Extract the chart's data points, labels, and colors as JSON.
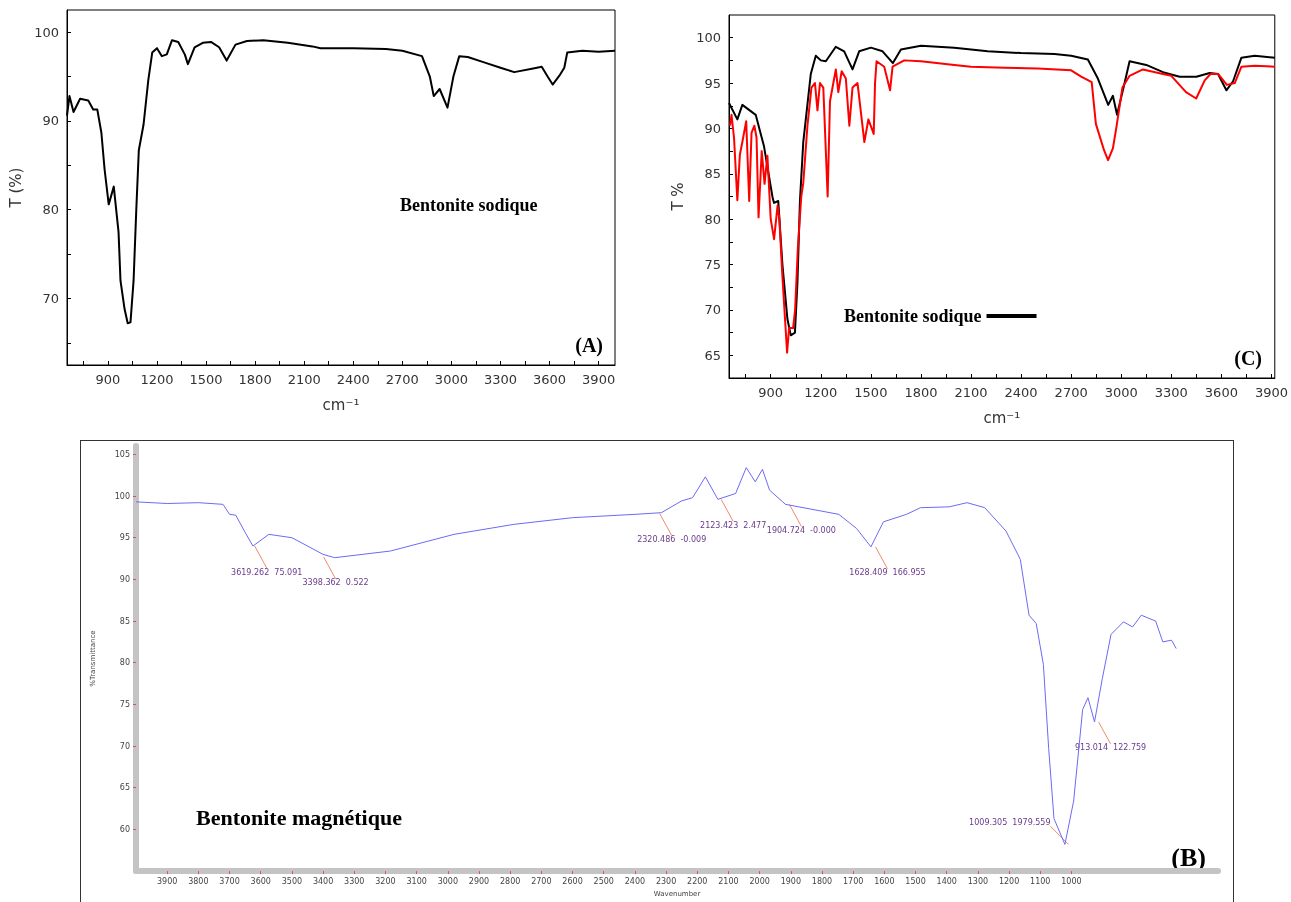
{
  "chart_data": [
    {
      "type": "line",
      "xlabel": "cm⁻¹",
      "ylabel": "T (%)",
      "xlim": [
        650,
        4000
      ],
      "ylim": [
        62.5,
        102.5
      ],
      "xticks": [
        {
          "value": 750,
          "label": null
        },
        900,
        {
          "value": 1050,
          "label": null
        },
        1200,
        {
          "value": 1350,
          "label": null
        },
        1500,
        {
          "value": 1650,
          "label": null
        },
        1800,
        {
          "value": 1950,
          "label": null
        },
        2100,
        {
          "value": 2250,
          "label": null
        },
        2400,
        {
          "value": 2550,
          "label": null
        },
        2700,
        {
          "value": 2850,
          "label": null
        },
        3000,
        {
          "value": 3150,
          "label": null
        },
        3300,
        {
          "value": 3450,
          "label": null
        },
        3600,
        {
          "value": 3750,
          "label": null
        },
        3900
      ],
      "yticks": [
        {
          "value": 65,
          "label": null
        },
        70,
        {
          "value": 75,
          "label": null
        },
        80,
        {
          "value": 85,
          "label": null
        },
        90,
        {
          "value": 95,
          "label": null
        },
        100
      ],
      "grid": false,
      "legend": false,
      "marker": "none",
      "line_style": "solid",
      "annotations": [
        "Bentonite sodique",
        "(A)"
      ],
      "series": [
        {
          "color": "#000000",
          "x": [
            650,
            665,
            690,
            730,
            780,
            810,
            835,
            860,
            880,
            905,
            936,
            945,
            965,
            977,
            1002,
            1021,
            1038,
            1057,
            1074,
            1089,
            1118,
            1147,
            1171,
            1200,
            1230,
            1260,
            1292,
            1330,
            1370,
            1389,
            1430,
            1480,
            1530,
            1580,
            1626,
            1680,
            1750,
            1850,
            2000,
            2150,
            2200,
            2400,
            2600,
            2700,
            2820,
            2868,
            2892,
            2928,
            2976,
            3012,
            3048,
            3100,
            3200,
            3300,
            3384,
            3500,
            3552,
            3588,
            3619,
            3660,
            3690,
            3708,
            3800,
            3900,
            4000
          ],
          "values": [
            90.6,
            92.8,
            91,
            92.5,
            92.3,
            91.3,
            91.3,
            88.7,
            84.5,
            80.6,
            82.6,
            81,
            77.5,
            72,
            68.8,
            67.2,
            67.3,
            72,
            80.2,
            86.7,
            89.6,
            94.6,
            97.7,
            98.2,
            97.3,
            97.5,
            99.1,
            98.9,
            97.5,
            96.4,
            98.3,
            98.8,
            98.9,
            98.3,
            96.8,
            98.6,
            99,
            99.1,
            98.8,
            98.4,
            98.2,
            98.2,
            98.1,
            97.9,
            97.3,
            95,
            92.8,
            93.6,
            91.5,
            95,
            97.3,
            97.2,
            96.6,
            96,
            95.5,
            95.9,
            96.1,
            95,
            94.1,
            95.1,
            96,
            97.7,
            97.9,
            97.8,
            97.9
          ]
        }
      ]
    },
    {
      "type": "line",
      "xlabel": "cm⁻¹",
      "ylabel": "T %",
      "xlim": [
        650,
        3920
      ],
      "ylim": [
        62.5,
        102.5
      ],
      "xticks": [
        {
          "value": 750,
          "label": null
        },
        900,
        {
          "value": 1050,
          "label": null
        },
        1200,
        {
          "value": 1350,
          "label": null
        },
        1500,
        {
          "value": 1650,
          "label": null
        },
        1800,
        {
          "value": 1950,
          "label": null
        },
        2100,
        {
          "value": 2250,
          "label": null
        },
        2400,
        {
          "value": 2550,
          "label": null
        },
        2700,
        {
          "value": 2850,
          "label": null
        },
        3000,
        {
          "value": 3150,
          "label": null
        },
        3300,
        {
          "value": 3450,
          "label": null
        },
        3600,
        {
          "value": 3750,
          "label": null
        },
        3900
      ],
      "yticks": [
        65,
        {
          "value": 67.5,
          "label": null
        },
        70,
        {
          "value": 72.5,
          "label": null
        },
        75,
        {
          "value": 77.5,
          "label": null
        },
        80,
        {
          "value": 82.5,
          "label": null
        },
        85,
        {
          "value": 87.5,
          "label": null
        },
        90,
        {
          "value": 92.5,
          "label": null
        },
        95,
        {
          "value": 97.5,
          "label": null
        },
        100
      ],
      "grid": false,
      "legend": "bottom left",
      "marker": "none",
      "line_style": "solid",
      "annotations": [
        "(C)"
      ],
      "series": [
        {
          "name": "Bentonite sodique",
          "color": "#000000",
          "x": [
            650,
            700,
            730,
            810,
            860,
            912,
            920,
            945,
            970,
            1000,
            1020,
            1045,
            1060,
            1075,
            1095,
            1140,
            1170,
            1200,
            1230,
            1290,
            1340,
            1390,
            1430,
            1500,
            1570,
            1632,
            1680,
            1800,
            2000,
            2200,
            2400,
            2600,
            2700,
            2800,
            2860,
            2922,
            2950,
            2975,
            3020,
            3050,
            3150,
            3250,
            3350,
            3450,
            3530,
            3580,
            3630,
            3670,
            3720,
            3800,
            3920
          ],
          "values": [
            92.8,
            91,
            92.6,
            91.5,
            88,
            82.3,
            81.8,
            82,
            75,
            69,
            67.2,
            67.5,
            73,
            82,
            88.5,
            96,
            98,
            97.5,
            97.4,
            99,
            98.5,
            96.5,
            98.5,
            98.9,
            98.5,
            97.2,
            98.7,
            99.1,
            98.9,
            98.5,
            98.3,
            98.2,
            98,
            97.6,
            95.5,
            92.6,
            93.6,
            91.5,
            95,
            97.4,
            97,
            96.2,
            95.7,
            95.7,
            96.1,
            96,
            94.2,
            95.2,
            97.8,
            98,
            97.8
          ]
        },
        {
          "color": "#ff0000",
          "x": [
            656,
            665,
            680,
            700,
            715,
            730,
            753,
            771,
            785,
            802,
            815,
            827,
            846,
            863,
            880,
            900,
            920,
            941,
            952,
            968,
            985,
            998,
            1010,
            1034,
            1046,
            1063,
            1083,
            1095,
            1120,
            1144,
            1165,
            1180,
            1195,
            1215,
            1241,
            1255,
            1290,
            1305,
            1325,
            1350,
            1371,
            1390,
            1420,
            1461,
            1485,
            1517,
            1525,
            1534,
            1580,
            1615,
            1630,
            1700,
            1800,
            2000,
            2100,
            2300,
            2500,
            2700,
            2760,
            2823,
            2848,
            2897,
            2921,
            2950,
            2970,
            3007,
            3050,
            3130,
            3250,
            3300,
            3388,
            3449,
            3500,
            3535,
            3580,
            3633,
            3680,
            3720,
            3800,
            3920
          ],
          "values": [
            90.3,
            91.5,
            89,
            82.1,
            87.1,
            88.5,
            90.8,
            82,
            89.5,
            90.3,
            89,
            80.2,
            87.5,
            83.9,
            87,
            80,
            77.8,
            81.5,
            80,
            74.3,
            69.2,
            65.3,
            68,
            68,
            70,
            77,
            82.5,
            84,
            90.3,
            94.5,
            95,
            92,
            95,
            94.5,
            82.5,
            93,
            96.5,
            94,
            96.3,
            95.5,
            90.3,
            94.5,
            95,
            88.5,
            91,
            89.4,
            95,
            97.4,
            96.8,
            94.2,
            96.8,
            97.5,
            97.4,
            97,
            96.8,
            96.7,
            96.6,
            96.4,
            95.7,
            95.1,
            90.5,
            87.6,
            86.5,
            87.8,
            90,
            94.5,
            95.8,
            96.5,
            96,
            95.8,
            94,
            93.3,
            95.3,
            96,
            96,
            94.8,
            95,
            96.8,
            96.9,
            96.8
          ]
        }
      ]
    },
    {
      "type": "line",
      "xlabel": "Wavenumber",
      "ylabel": "%Transmittance",
      "xlim": [
        4000,
        530
      ],
      "ylim": [
        55,
        106
      ],
      "xticks": [
        3900,
        3800,
        3700,
        3600,
        3500,
        3400,
        3300,
        3200,
        3100,
        3000,
        2900,
        2800,
        2700,
        2600,
        2500,
        2400,
        2300,
        2200,
        2100,
        2000,
        1900,
        1800,
        1700,
        1600,
        1500,
        1400,
        1300,
        1200,
        1100,
        1000
      ],
      "yticks": [
        60,
        65,
        70,
        75,
        80,
        85,
        90,
        95,
        100,
        105
      ],
      "grid": false,
      "legend": false,
      "marker": "none",
      "line_style": "solid",
      "annotations": [
        "Bentonite magnétique",
        "(B)",
        {
          "text": "3619.262  75.091",
          "x": 3619.262,
          "y": 94
        },
        {
          "text": "3398.362  0.522",
          "x": 3398.362,
          "y": 92.7
        },
        {
          "text": "2320.486  -0.009",
          "x": 2320.486,
          "y": 97.9
        },
        {
          "text": "2123.423  2.477",
          "x": 2123.423,
          "y": 99.6
        },
        {
          "text": "1904.724  -0.000",
          "x": 1904.724,
          "y": 99
        },
        {
          "text": "1628.409  166.955",
          "x": 1628.409,
          "y": 93.9
        },
        {
          "text": "1009.305  1979.559",
          "x": 1009.305,
          "y": 58.2
        },
        {
          "text": "913.014  122.759",
          "x": 913.014,
          "y": 72.9
        }
      ],
      "series": [
        {
          "color": "#6b6bf5",
          "x": [
            4000,
            3900,
            3800,
            3721,
            3700,
            3680,
            3651,
            3625,
            3574,
            3500,
            3400,
            3363,
            3184,
            2980,
            2788,
            2600,
            2400,
            2315,
            2251,
            2215,
            2174,
            2134,
            2077,
            2043,
            2014,
            1991,
            1968,
            1917,
            1803,
            1746,
            1689,
            1643,
            1603,
            1529,
            1484,
            1392,
            1335,
            1278,
            1210,
            1164,
            1136,
            1113,
            1090,
            1073,
            1056,
            1021,
            993,
            964,
            947,
            926,
            901,
            873,
            833,
            804,
            776,
            730,
            707,
            679,
            664
          ],
          "values": [
            99.3,
            99.1,
            99.2,
            99,
            97.8,
            97.7,
            95.7,
            94,
            95.4,
            95,
            93,
            92.6,
            93.4,
            95.4,
            96.6,
            97.4,
            97.8,
            98,
            99.4,
            99.8,
            102.3,
            99.6,
            100.3,
            103.4,
            101.7,
            103.2,
            100.7,
            99,
            98.2,
            97.8,
            96.1,
            93.9,
            96.9,
            97.8,
            98.6,
            98.7,
            99.2,
            98.6,
            95.8,
            92.4,
            85.7,
            84.7,
            79.8,
            69.7,
            61.3,
            58.2,
            63.4,
            74.4,
            75.8,
            72.9,
            78.1,
            83.4,
            84.9,
            84.3,
            85.7,
            85,
            82.5,
            82.7,
            81.7
          ]
        }
      ]
    }
  ]
}
